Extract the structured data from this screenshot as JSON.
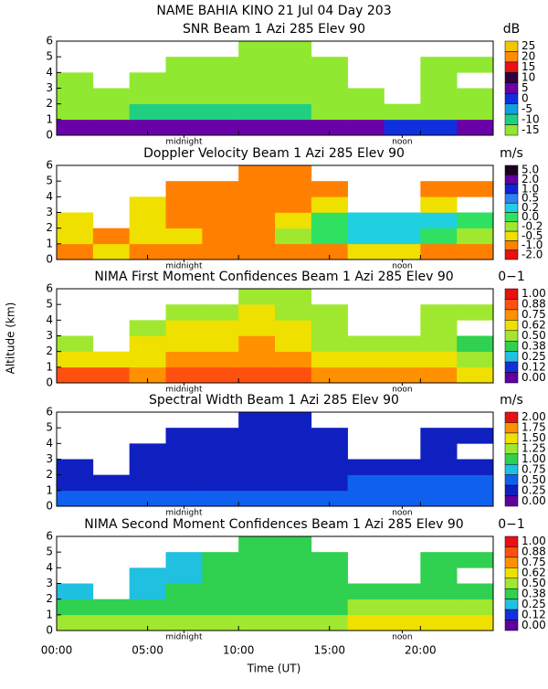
{
  "page": {
    "title": "NAME BAHIA KINO  21 Jul 04 Day 203",
    "ylabel": "Altitude (km)",
    "time_axis": {
      "label": "Time (UT)",
      "xlim": [
        0,
        24
      ],
      "xticks": [
        {
          "value": 0,
          "label": "00:00"
        },
        {
          "value": 5,
          "label": "05:00"
        },
        {
          "value": 10,
          "label": "10:00"
        },
        {
          "value": 15,
          "label": "15:00"
        },
        {
          "value": 20,
          "label": "20:00"
        }
      ]
    }
  },
  "chart_data": [
    {
      "type": "heatmap",
      "title": "SNR Beam 1 Azi 285 Elev 90",
      "unit": "dB",
      "ylim": [
        0,
        6
      ],
      "yticks": [
        0,
        1,
        2,
        3,
        4,
        5,
        6
      ],
      "annotations": [
        {
          "x": 7,
          "text": "midnight"
        },
        {
          "x": 19,
          "text": "noon"
        }
      ],
      "cbticks": [
        25,
        20,
        15,
        10,
        5,
        0,
        -5,
        -10,
        -15
      ],
      "colors": [
        "#f5c400",
        "#ff8c00",
        "#e8101a",
        "#300040",
        "#6a00a8",
        "#1030e0",
        "#10a0e0",
        "#20d080",
        "#90e830"
      ],
      "xbins": [
        0,
        2,
        4,
        6,
        8,
        10,
        12,
        14,
        16,
        18,
        20,
        22,
        24
      ],
      "ybins": [
        0,
        1,
        2,
        3,
        4,
        5,
        6
      ],
      "z": [
        [
          8,
          5,
          5,
          5,
          5,
          5,
          5,
          5,
          5,
          3,
          3,
          5
        ],
        [
          -12,
          -12,
          -10,
          -10,
          -10,
          -10,
          -10,
          -12,
          -12,
          -12,
          -12,
          -12
        ],
        [
          -15,
          -15,
          -13,
          -12,
          -12,
          -12,
          -12,
          -15,
          -15,
          null,
          -15,
          -15
        ],
        [
          -15,
          null,
          -15,
          -13,
          -13,
          -12,
          -13,
          -15,
          null,
          null,
          -15,
          null
        ],
        [
          null,
          null,
          null,
          -15,
          -15,
          -13,
          -15,
          -15,
          null,
          null,
          -15,
          -15
        ],
        [
          null,
          null,
          null,
          null,
          null,
          -13,
          -15,
          null,
          null,
          null,
          null,
          null
        ]
      ]
    },
    {
      "type": "heatmap",
      "title": "Doppler Velocity Beam 1 Azi 285 Elev 90",
      "unit": "m/s",
      "ylim": [
        0,
        6
      ],
      "yticks": [
        0,
        1,
        2,
        3,
        4,
        5,
        6
      ],
      "annotations": [
        {
          "x": 7,
          "text": "midnight"
        },
        {
          "x": 19,
          "text": "noon"
        }
      ],
      "cbticks": [
        {
          "value": 5,
          "label": "5.0"
        },
        {
          "value": 2,
          "label": "2.0"
        },
        {
          "value": 1,
          "label": "1.0"
        },
        0.5,
        0.2,
        {
          "value": 0,
          "label": "0.0"
        },
        -0.2,
        -0.5,
        {
          "value": -1,
          "label": "-1.0"
        },
        {
          "value": -2,
          "label": "-2.0"
        }
      ],
      "colors": [
        "#200020",
        "#6000a0",
        "#1020e0",
        "#3080f0",
        "#20d0e0",
        "#30e060",
        "#a0e830",
        "#f0e000",
        "#ff8000",
        "#e81010"
      ],
      "xbins": [
        0,
        2,
        4,
        6,
        8,
        10,
        12,
        14,
        16,
        18,
        20,
        22,
        24
      ],
      "ybins": [
        0,
        1,
        2,
        3,
        4,
        5,
        6
      ],
      "z": [
        [
          -1,
          -0.5,
          -1,
          -1,
          -1,
          -1,
          -1,
          -1,
          -0.5,
          -0.5,
          -1,
          -1
        ],
        [
          -0.5,
          -1,
          -0.5,
          -0.5,
          -1,
          -1,
          -0.2,
          0,
          0.2,
          0.2,
          0,
          -0.2
        ],
        [
          -0.5,
          null,
          -0.5,
          -1,
          -1,
          -1,
          -0.5,
          0,
          0.2,
          0.2,
          0.2,
          0
        ],
        [
          null,
          null,
          -0.5,
          -1,
          -1,
          -1,
          -1,
          -0.5,
          null,
          null,
          -0.5,
          null
        ],
        [
          null,
          null,
          null,
          -1,
          -1,
          -1,
          -1,
          -1,
          null,
          null,
          -1,
          -1
        ],
        [
          null,
          null,
          null,
          null,
          null,
          -1,
          -1,
          null,
          null,
          null,
          null,
          null
        ]
      ]
    },
    {
      "type": "heatmap",
      "title": "NIMA First Moment Confidences Beam 1 Azi 285 Elev 90",
      "unit": "0−1",
      "ylim": [
        0,
        6
      ],
      "yticks": [
        0,
        1,
        2,
        3,
        4,
        5,
        6
      ],
      "annotations": [
        {
          "x": 7,
          "text": "midnight"
        },
        {
          "x": 19,
          "text": "noon"
        }
      ],
      "cbticks": [
        {
          "value": 1,
          "label": "1.00"
        },
        0.88,
        0.75,
        0.62,
        {
          "value": 0.5,
          "label": "0.50"
        },
        0.38,
        0.25,
        0.12,
        {
          "value": 0,
          "label": "0.00"
        }
      ],
      "colors": [
        "#e81010",
        "#ff5010",
        "#ff9000",
        "#f0e000",
        "#a0e830",
        "#30d050",
        "#20c0e0",
        "#1030e0",
        "#6000a0"
      ],
      "xbins": [
        0,
        2,
        4,
        6,
        8,
        10,
        12,
        14,
        16,
        18,
        20,
        22,
        24
      ],
      "ybins": [
        0,
        1,
        2,
        3,
        4,
        5,
        6
      ],
      "z": [
        [
          0.88,
          0.88,
          0.75,
          0.88,
          0.88,
          0.88,
          0.88,
          0.75,
          0.75,
          0.75,
          0.75,
          0.62
        ],
        [
          0.62,
          0.62,
          0.62,
          0.75,
          0.75,
          0.75,
          0.75,
          0.62,
          0.62,
          0.62,
          0.62,
          0.5
        ],
        [
          0.5,
          null,
          0.62,
          0.62,
          0.62,
          0.75,
          0.62,
          0.5,
          0.5,
          0.5,
          0.5,
          0.38
        ],
        [
          null,
          null,
          0.5,
          0.62,
          0.62,
          0.62,
          0.62,
          0.5,
          null,
          null,
          0.5,
          null
        ],
        [
          null,
          null,
          null,
          0.5,
          0.5,
          0.62,
          0.5,
          0.5,
          null,
          null,
          0.5,
          0.5
        ],
        [
          null,
          null,
          null,
          null,
          null,
          0.5,
          0.5,
          null,
          null,
          null,
          null,
          null
        ]
      ]
    },
    {
      "type": "heatmap",
      "title": "Spectral Width Beam 1 Azi 285 Elev 90",
      "unit": "m/s",
      "ylim": [
        0,
        6
      ],
      "yticks": [
        0,
        1,
        2,
        3,
        4,
        5,
        6
      ],
      "annotations": [
        {
          "x": 7,
          "text": "midnight"
        },
        {
          "x": 19,
          "text": "noon"
        }
      ],
      "cbticks": [
        {
          "value": 2,
          "label": "2.00"
        },
        1.75,
        {
          "value": 1.5,
          "label": "1.50"
        },
        1.25,
        {
          "value": 1,
          "label": "1.00"
        },
        0.75,
        {
          "value": 0.5,
          "label": "0.50"
        },
        0.25,
        {
          "value": 0,
          "label": "0.00"
        }
      ],
      "colors": [
        "#e81010",
        "#ff9000",
        "#f0e000",
        "#a0e830",
        "#30d050",
        "#20c0e0",
        "#1060f0",
        "#1020c0",
        "#6000a0"
      ],
      "xbins": [
        0,
        2,
        4,
        6,
        8,
        10,
        12,
        14,
        16,
        18,
        20,
        22,
        24
      ],
      "ybins": [
        0,
        1,
        2,
        3,
        4,
        5,
        6
      ],
      "z": [
        [
          0.6,
          0.5,
          0.5,
          0.5,
          0.5,
          0.5,
          0.5,
          0.5,
          0.5,
          0.5,
          0.6,
          0.6
        ],
        [
          0.3,
          0.3,
          0.3,
          0.4,
          0.4,
          0.4,
          0.3,
          0.3,
          0.5,
          0.5,
          0.5,
          0.5
        ],
        [
          0.3,
          null,
          0.3,
          0.3,
          0.3,
          0.4,
          0.3,
          0.3,
          0.3,
          0.3,
          0.3,
          0.3
        ],
        [
          null,
          null,
          0.3,
          0.3,
          0.3,
          0.4,
          0.3,
          0.3,
          null,
          null,
          0.3,
          null
        ],
        [
          null,
          null,
          null,
          0.3,
          0.3,
          0.4,
          0.3,
          0.3,
          null,
          null,
          0.3,
          0.3
        ],
        [
          null,
          null,
          null,
          null,
          null,
          0.4,
          0.3,
          null,
          null,
          null,
          null,
          null
        ]
      ]
    },
    {
      "type": "heatmap",
      "title": "NIMA Second Moment Confidences Beam 1 Azi 285 Elev 90",
      "unit": "0−1",
      "ylim": [
        0,
        6
      ],
      "yticks": [
        0,
        1,
        2,
        3,
        4,
        5,
        6
      ],
      "annotations": [
        {
          "x": 7,
          "text": "midnight"
        },
        {
          "x": 19,
          "text": "noon"
        }
      ],
      "cbticks": [
        {
          "value": 1,
          "label": "1.00"
        },
        0.88,
        0.75,
        0.62,
        {
          "value": 0.5,
          "label": "0.50"
        },
        0.38,
        0.25,
        0.12,
        {
          "value": 0,
          "label": "0.00"
        }
      ],
      "colors": [
        "#e81010",
        "#ff5010",
        "#ff9000",
        "#f0e000",
        "#a0e830",
        "#30d050",
        "#20c0e0",
        "#1030e0",
        "#6000a0"
      ],
      "xbins": [
        0,
        2,
        4,
        6,
        8,
        10,
        12,
        14,
        16,
        18,
        20,
        22,
        24
      ],
      "ybins": [
        0,
        1,
        2,
        3,
        4,
        5,
        6
      ],
      "z": [
        [
          0.5,
          0.5,
          0.5,
          0.5,
          0.5,
          0.5,
          0.5,
          0.5,
          0.62,
          0.62,
          0.62,
          0.62
        ],
        [
          0.38,
          0.38,
          0.38,
          0.38,
          0.38,
          0.38,
          0.38,
          0.38,
          0.5,
          0.5,
          0.5,
          0.5
        ],
        [
          0.25,
          null,
          0.25,
          0.38,
          0.38,
          0.38,
          0.38,
          0.38,
          0.38,
          0.38,
          0.38,
          0.38
        ],
        [
          null,
          null,
          0.25,
          0.25,
          0.38,
          0.38,
          0.38,
          0.38,
          null,
          null,
          0.38,
          null
        ],
        [
          null,
          null,
          null,
          0.25,
          0.38,
          0.38,
          0.38,
          0.38,
          null,
          null,
          0.38,
          0.38
        ],
        [
          null,
          null,
          null,
          null,
          null,
          0.38,
          0.38,
          null,
          null,
          null,
          null,
          null
        ]
      ]
    }
  ]
}
